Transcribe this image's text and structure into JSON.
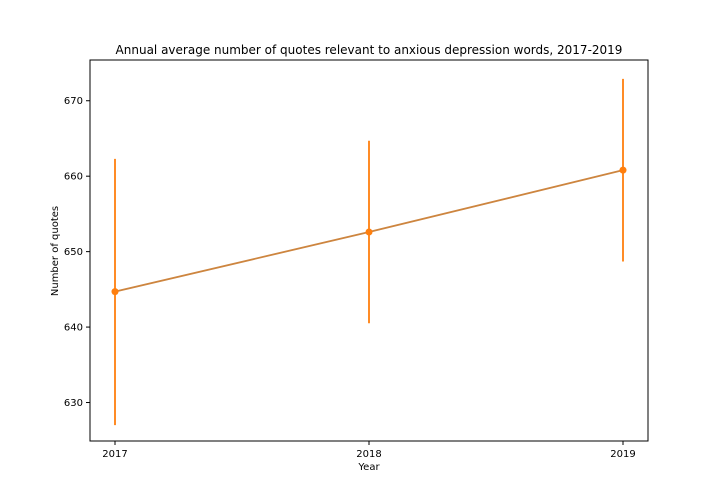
{
  "chart_data": {
    "type": "line",
    "title": "Annual average number of quotes relevant to anxious depression words, 2017-2019",
    "xlabel": "Year",
    "ylabel": "Number of quotes",
    "x": [
      "2017",
      "2018",
      "2019"
    ],
    "series": [
      {
        "values": [
          644.7,
          652.6,
          660.8
        ],
        "error_low": [
          627.0,
          640.5,
          648.7
        ],
        "error_high": [
          662.3,
          664.7,
          672.9
        ]
      }
    ],
    "ylim": [
      624.9,
      675.4
    ],
    "yticks": [
      630,
      640,
      650,
      660,
      670
    ],
    "grid": false,
    "colors": {
      "errorbar": "#ff7f0e",
      "line": "#cd853f",
      "marker": "#ff7f0e",
      "axes": "#000000"
    }
  }
}
